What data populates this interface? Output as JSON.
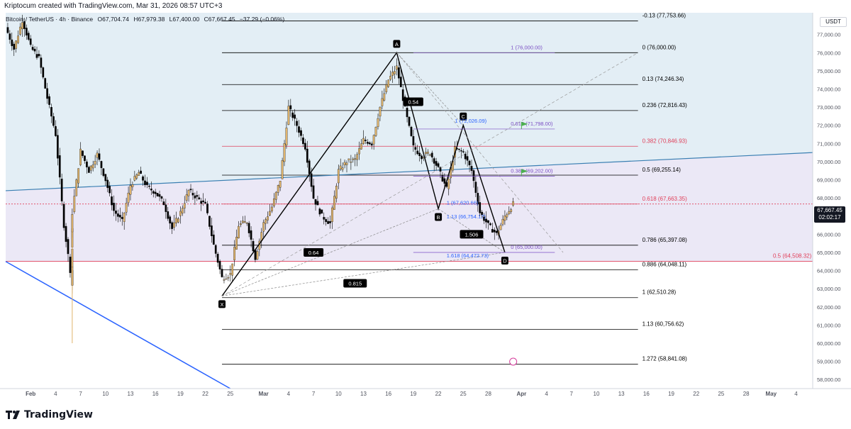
{
  "header": {
    "attribution": "Kriptocum created with TradingView.com, Mar 31, 2026 08:57 UTC+3",
    "symbol": "Bitcoin / TetherUS · 4h · Binance",
    "ohlc": {
      "open": "O67,704.74",
      "high": "H67,979.38",
      "low": "L67,400.00",
      "close": "C67,667.45",
      "change": "−37.29 (−0.06%)"
    },
    "currency": "USDT",
    "current_price": "67,667.45",
    "countdown": "02:02:17"
  },
  "footer": {
    "brand": "TradingView"
  },
  "colors": {
    "upper_zone": "#e3eef5",
    "lower_zone": "#ebe8f6",
    "bull_candle": "#e0b46c",
    "bear_candle": "#000000",
    "fib_line": "#000000",
    "fib_red": "#e0405a",
    "fib_purple": "#7b4fc4",
    "trend_blue": "#2962ff",
    "trend_teal": "#3a7fb2"
  },
  "chart_data": {
    "type": "candlestick",
    "title": "",
    "y_axis": {
      "min": 57500,
      "max": 78200,
      "ticks": [
        "58,000.00",
        "59,000.00",
        "60,000.00",
        "61,000.00",
        "62,000.00",
        "63,000.00",
        "64,000.00",
        "65,000.00",
        "66,000.00",
        "67,000.00",
        "68,000.00",
        "69,000.00",
        "70,000.00",
        "71,000.00",
        "72,000.00",
        "73,000.00",
        "74,000.00",
        "75,000.00",
        "76,000.00",
        "77,000.00"
      ]
    },
    "x_axis": {
      "start": "2026-01-29",
      "end": "2026-05-06",
      "ticks": [
        {
          "date": "2026-02-01",
          "label": "Feb"
        },
        {
          "date": "2026-02-04",
          "label": "4"
        },
        {
          "date": "2026-02-07",
          "label": "7"
        },
        {
          "date": "2026-02-10",
          "label": "10"
        },
        {
          "date": "2026-02-13",
          "label": "13"
        },
        {
          "date": "2026-02-16",
          "label": "16"
        },
        {
          "date": "2026-02-19",
          "label": "19"
        },
        {
          "date": "2026-02-22",
          "label": "22"
        },
        {
          "date": "2026-02-25",
          "label": "25"
        },
        {
          "date": "2026-03-01",
          "label": "Mar"
        },
        {
          "date": "2026-03-04",
          "label": "4"
        },
        {
          "date": "2026-03-07",
          "label": "7"
        },
        {
          "date": "2026-03-10",
          "label": "10"
        },
        {
          "date": "2026-03-13",
          "label": "13"
        },
        {
          "date": "2026-03-16",
          "label": "16"
        },
        {
          "date": "2026-03-19",
          "label": "19"
        },
        {
          "date": "2026-03-22",
          "label": "22"
        },
        {
          "date": "2026-03-25",
          "label": "25"
        },
        {
          "date": "2026-03-28",
          "label": "28"
        },
        {
          "date": "2026-04-01",
          "label": "Apr"
        },
        {
          "date": "2026-04-04",
          "label": "4"
        },
        {
          "date": "2026-04-07",
          "label": "7"
        },
        {
          "date": "2026-04-10",
          "label": "10"
        },
        {
          "date": "2026-04-13",
          "label": "13"
        },
        {
          "date": "2026-04-16",
          "label": "16"
        },
        {
          "date": "2026-04-19",
          "label": "19"
        },
        {
          "date": "2026-04-22",
          "label": "22"
        },
        {
          "date": "2026-04-25",
          "label": "25"
        },
        {
          "date": "2026-04-28",
          "label": "28"
        },
        {
          "date": "2026-05-01",
          "label": "May"
        },
        {
          "date": "2026-05-04",
          "label": "4"
        }
      ]
    },
    "price_path": [
      [
        "2026-01-29",
        77400
      ],
      [
        "2026-01-30",
        76200
      ],
      [
        "2026-01-31",
        77800
      ],
      [
        "2026-02-01",
        76300
      ],
      [
        "2026-02-02",
        75700
      ],
      [
        "2026-02-03",
        73500
      ],
      [
        "2026-02-04",
        71500
      ],
      [
        "2026-02-05",
        66500
      ],
      [
        "2026-02-06",
        63200
      ],
      [
        "2026-02-06",
        67200
      ],
      [
        "2026-02-07",
        70600
      ],
      [
        "2026-02-08",
        69500
      ],
      [
        "2026-02-09",
        70400
      ],
      [
        "2026-02-10",
        69000
      ],
      [
        "2026-02-11",
        67300
      ],
      [
        "2026-02-12",
        66700
      ],
      [
        "2026-02-13",
        68700
      ],
      [
        "2026-02-14",
        69400
      ],
      [
        "2026-02-15",
        68600
      ],
      [
        "2026-02-16",
        68300
      ],
      [
        "2026-02-17",
        67700
      ],
      [
        "2026-02-18",
        66300
      ],
      [
        "2026-02-19",
        67200
      ],
      [
        "2026-02-20",
        68400
      ],
      [
        "2026-02-21",
        68000
      ],
      [
        "2026-02-22",
        67600
      ],
      [
        "2026-02-23",
        65400
      ],
      [
        "2026-02-24",
        63600
      ],
      [
        "2026-02-25",
        63800
      ],
      [
        "2026-02-26",
        66500
      ],
      [
        "2026-02-27",
        66700
      ],
      [
        "2026-02-28",
        64700
      ],
      [
        "2026-03-01",
        66600
      ],
      [
        "2026-03-02",
        67500
      ],
      [
        "2026-03-03",
        69000
      ],
      [
        "2026-03-04",
        73000
      ],
      [
        "2026-03-05",
        72000
      ],
      [
        "2026-03-06",
        70800
      ],
      [
        "2026-03-07",
        68000
      ],
      [
        "2026-03-08",
        67000
      ],
      [
        "2026-03-09",
        66600
      ],
      [
        "2026-03-10",
        69500
      ],
      [
        "2026-03-11",
        70000
      ],
      [
        "2026-03-12",
        70100
      ],
      [
        "2026-03-13",
        71200
      ],
      [
        "2026-03-14",
        71000
      ],
      [
        "2026-03-15",
        73000
      ],
      [
        "2026-03-16",
        74500
      ],
      [
        "2026-03-17",
        75200
      ],
      [
        "2026-03-18",
        72900
      ],
      [
        "2026-03-19",
        70800
      ],
      [
        "2026-03-20",
        70300
      ],
      [
        "2026-03-21",
        70500
      ],
      [
        "2026-03-22",
        69600
      ],
      [
        "2026-03-23",
        68500
      ],
      [
        "2026-03-24",
        70700
      ],
      [
        "2026-03-25",
        70500
      ],
      [
        "2026-03-26",
        69500
      ],
      [
        "2026-03-27",
        67200
      ],
      [
        "2026-03-28",
        66500
      ],
      [
        "2026-03-29",
        66000
      ],
      [
        "2026-03-30",
        67000
      ],
      [
        "2026-03-31",
        67667
      ]
    ],
    "harmonic_points": [
      {
        "label": "X",
        "date": "2026-02-24",
        "price": 62600
      },
      {
        "label": "A",
        "date": "2026-03-17",
        "price": 76000
      },
      {
        "label": "B",
        "date": "2026-03-22",
        "price": 67400
      },
      {
        "label": "C",
        "date": "2026-03-25",
        "price": 72000
      },
      {
        "label": "D",
        "date": "2026-03-30",
        "price": 65000
      }
    ],
    "pattern_ratios": [
      {
        "text": "0.54",
        "date": "2026-03-19",
        "price": 73300
      },
      {
        "text": "0.64",
        "date": "2026-03-07",
        "price": 65000
      },
      {
        "text": "0.815",
        "date": "2026-03-12",
        "price": 63300
      },
      {
        "text": "1.506",
        "date": "2026-03-26",
        "price": 66000
      }
    ],
    "fib_levels": [
      {
        "label": "-0.13 (77,753.66)",
        "price": 77753.66,
        "color": "black"
      },
      {
        "label": "0 (76,000.00)",
        "price": 76000,
        "color": "black"
      },
      {
        "label": "0.13 (74,246.34)",
        "price": 74246.34,
        "color": "black"
      },
      {
        "label": "0.236 (72,816.43)",
        "price": 72816.43,
        "color": "black"
      },
      {
        "label": "0.382 (70,846.93)",
        "price": 70846.93,
        "color": "red"
      },
      {
        "label": "0.5 (69,255.14)",
        "price": 69255.14,
        "color": "black"
      },
      {
        "label": "0.618 (67,663.35)",
        "price": 67663.35,
        "color": "red"
      },
      {
        "label": "0.786 (65,397.08)",
        "price": 65397.08,
        "color": "black"
      },
      {
        "label": "0.886 (64,048.11)",
        "price": 64048.11,
        "color": "black"
      },
      {
        "label": "1 (62,510.28)",
        "price": 62510.28,
        "color": "black"
      },
      {
        "label": "1.13 (60,756.62)",
        "price": 60756.62,
        "color": "black"
      },
      {
        "label": "1.272 (58,841.08)",
        "price": 58841.08,
        "color": "black"
      }
    ],
    "retracement_labels": [
      {
        "label": "1 (76,000.00)",
        "price": 76000
      },
      {
        "label": "0.618 (71,798.00)",
        "price": 71798
      },
      {
        "label": "0.382 (69,202.00)",
        "price": 69202
      },
      {
        "label": "0 (65,000.00)",
        "price": 65000
      }
    ],
    "bc_labels": [
      {
        "label": "1 (72,026.09)",
        "price": 72026.09
      },
      {
        "label": "1 (67,620.66)",
        "price": 67520
      },
      {
        "label": "1.13 (66,754.17)",
        "price": 66754.17
      },
      {
        "label": "1.618 (64,472.73)",
        "price": 64600
      }
    ],
    "side_label": {
      "label": "0.5 (64,508.32)",
      "price": 64508.32
    }
  }
}
